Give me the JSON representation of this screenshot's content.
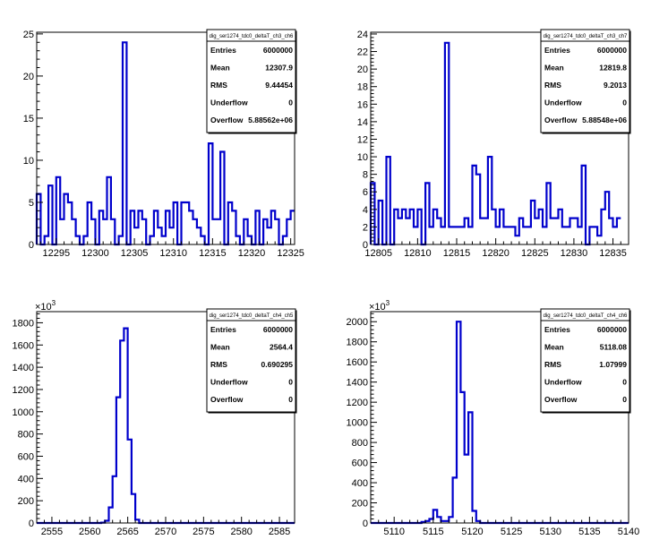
{
  "chart_data": [
    {
      "type": "bar",
      "title": "",
      "xlabel": "",
      "ylabel": "",
      "xlim": [
        12292.5,
        12325.5
      ],
      "ylim": [
        0,
        25.2
      ],
      "bin_width": 0.5,
      "x_ticks": [
        12295,
        12300,
        12305,
        12310,
        12315,
        12320,
        12325
      ],
      "y_ticks": [
        0,
        5,
        10,
        15,
        20,
        25
      ],
      "multiplier": "",
      "values": [
        6,
        0,
        1,
        7,
        0,
        8,
        3,
        6,
        5,
        3,
        1,
        0,
        1,
        5,
        3,
        0,
        4,
        3,
        8,
        3,
        0,
        1,
        24,
        0,
        4,
        2,
        4,
        3,
        0,
        1,
        4,
        2,
        1,
        4,
        2,
        5,
        0,
        5,
        5,
        4,
        3,
        2,
        1,
        0,
        12,
        3,
        3,
        11,
        0,
        5,
        4,
        1,
        0,
        3,
        1,
        0,
        4,
        0,
        3,
        2,
        4,
        3,
        0,
        1,
        3,
        4
      ],
      "stats": {
        "name": "dig_ser1274_tdc0_deltaT_ch3_ch6",
        "rows": [
          {
            "label": "Entries",
            "value": "6000000"
          },
          {
            "label": "Mean",
            "value": "12307.9"
          },
          {
            "label": "RMS",
            "value": "9.44454"
          },
          {
            "label": "Underflow",
            "value": "0"
          },
          {
            "label": "Overflow",
            "value": "5.88562e+06"
          }
        ]
      }
    },
    {
      "type": "bar",
      "title": "",
      "xlabel": "",
      "ylabel": "",
      "xlim": [
        12804,
        12837
      ],
      "ylim": [
        0,
        24.2
      ],
      "bin_width": 0.5,
      "x_ticks": [
        12805,
        12810,
        12815,
        12820,
        12825,
        12830,
        12835
      ],
      "y_ticks": [
        0,
        2,
        4,
        6,
        8,
        10,
        12,
        14,
        16,
        18,
        20,
        22,
        24
      ],
      "multiplier": "",
      "values": [
        7,
        0,
        5,
        0,
        10,
        0,
        4,
        3,
        4,
        3,
        4,
        2,
        4,
        0,
        7,
        2,
        4,
        3,
        2,
        23,
        2,
        2,
        2,
        2,
        3,
        2,
        9,
        8,
        3,
        3,
        10,
        4,
        2,
        4,
        2,
        2,
        2,
        1,
        3,
        2,
        2,
        5,
        3,
        4,
        2,
        7,
        3,
        3,
        4,
        2,
        2,
        3,
        3,
        2,
        9,
        0,
        2,
        2,
        1,
        4,
        6,
        3,
        2,
        3
      ],
      "stats": {
        "name": "dig_ser1274_tdc0_deltaT_ch3_ch7",
        "rows": [
          {
            "label": "Entries",
            "value": "6000000"
          },
          {
            "label": "Mean",
            "value": "12819.8"
          },
          {
            "label": "RMS",
            "value": "9.2013"
          },
          {
            "label": "Underflow",
            "value": "0"
          },
          {
            "label": "Overflow",
            "value": "5.88548e+06"
          }
        ]
      }
    },
    {
      "type": "bar",
      "title": "",
      "xlabel": "",
      "ylabel": "",
      "xlim": [
        2553,
        2587
      ],
      "ylim": [
        0,
        1900
      ],
      "bin_width": 0.5,
      "x_ticks": [
        2555,
        2560,
        2565,
        2570,
        2575,
        2580,
        2585
      ],
      "y_ticks": [
        0,
        200,
        400,
        600,
        800,
        1000,
        1200,
        1400,
        1600,
        1800
      ],
      "multiplier": "×10³",
      "values": [
        0,
        0,
        0,
        0,
        0,
        0,
        0,
        0,
        0,
        0,
        0,
        0,
        0,
        0,
        0,
        0,
        0,
        3,
        20,
        140,
        420,
        1130,
        1640,
        1750,
        750,
        260,
        30,
        0,
        0,
        0,
        0,
        0,
        0,
        0,
        0,
        0,
        0,
        0,
        0,
        0,
        0,
        0,
        0,
        0,
        0,
        0,
        0,
        0,
        0,
        0,
        0,
        0,
        0,
        0,
        0,
        0,
        0,
        0,
        0,
        0,
        0,
        0,
        0,
        0,
        0,
        0,
        0,
        0
      ],
      "stats": {
        "name": "dig_ser1274_tdc0_deltaT_ch4_ch5",
        "rows": [
          {
            "label": "Entries",
            "value": "6000000"
          },
          {
            "label": "Mean",
            "value": "2564.4"
          },
          {
            "label": "RMS",
            "value": "0.690295"
          },
          {
            "label": "Underflow",
            "value": "0"
          },
          {
            "label": "Overflow",
            "value": "0"
          }
        ]
      }
    },
    {
      "type": "bar",
      "title": "",
      "xlabel": "",
      "ylabel": "",
      "xlim": [
        5107,
        5140
      ],
      "ylim": [
        0,
        2100
      ],
      "bin_width": 0.5,
      "x_ticks": [
        5110,
        5115,
        5120,
        5125,
        5130,
        5135,
        5140
      ],
      "y_ticks": [
        0,
        200,
        400,
        600,
        800,
        1000,
        1200,
        1400,
        1600,
        1800,
        2000
      ],
      "multiplier": "×10³",
      "values": [
        0,
        0,
        0,
        0,
        0,
        0,
        0,
        0,
        0,
        0,
        0,
        0,
        0,
        10,
        20,
        40,
        130,
        60,
        20,
        20,
        60,
        450,
        2000,
        1300,
        680,
        1100,
        120,
        20,
        0,
        0,
        0,
        0,
        0,
        0,
        0,
        0,
        0,
        0,
        0,
        0,
        0,
        0,
        0,
        0,
        0,
        0,
        0,
        0,
        0,
        0,
        0,
        0,
        0,
        0,
        0,
        0,
        0,
        0,
        0,
        0,
        0,
        0,
        0,
        0,
        0,
        0
      ],
      "stats": {
        "name": "dig_ser1274_tdc0_deltaT_ch4_ch6",
        "rows": [
          {
            "label": "Entries",
            "value": "6000000"
          },
          {
            "label": "Mean",
            "value": "5118.08"
          },
          {
            "label": "RMS",
            "value": "1.07999"
          },
          {
            "label": "Underflow",
            "value": "0"
          },
          {
            "label": "Overflow",
            "value": "0"
          }
        ]
      }
    }
  ]
}
